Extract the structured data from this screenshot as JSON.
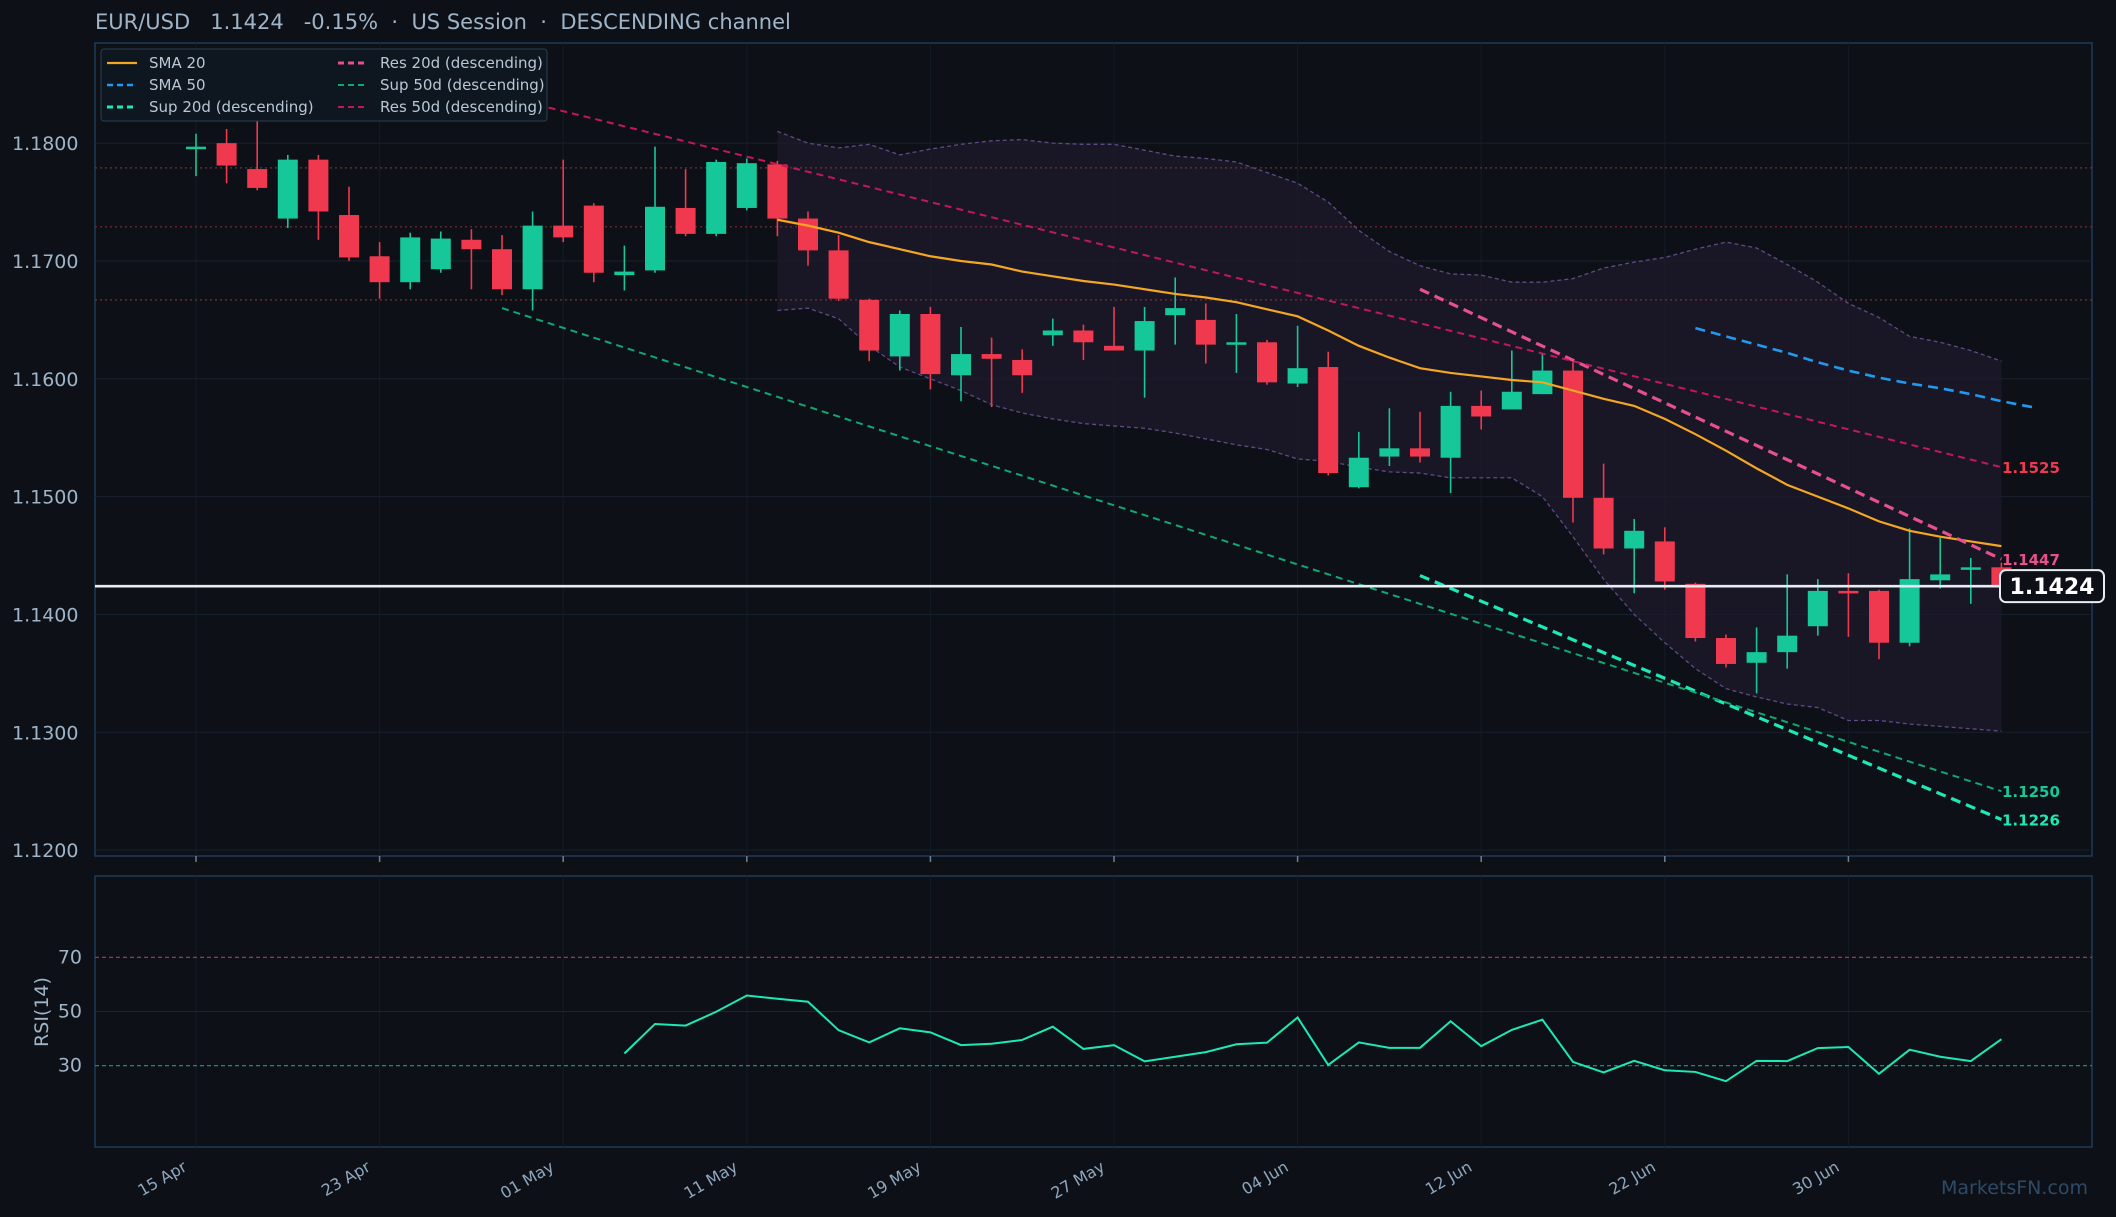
{
  "header": {
    "symbol": "EUR/USD",
    "price": "1.1424",
    "change": "-0.15%",
    "sep1": "·",
    "session": "US Session",
    "sep2": "·",
    "channel": "DESCENDING channel"
  },
  "watermark": "MarketsFN.com",
  "colors": {
    "background": "#0d1117",
    "up": "#16c79a",
    "down": "#f0384e",
    "sma20": "#f5a623",
    "sma50": "#1e9bf0",
    "res20": "#e6508c",
    "sup20": "#1de9b6",
    "res50": "#c2185b",
    "sup50": "#0fa870",
    "rsi": "#1de9b6"
  },
  "chart_data": [
    {
      "type": "candlestick",
      "title": "EUR/USD",
      "ylim": [
        1.1195,
        1.1885
      ],
      "yticks": [
        "1.1800",
        "1.1700",
        "1.1600",
        "1.1500",
        "1.1400",
        "1.1300",
        "1.1200"
      ],
      "ytick_values": [
        1.18,
        1.17,
        1.16,
        1.15,
        1.14,
        1.13,
        1.12
      ],
      "xticks": [
        "15 Apr",
        "23 Apr",
        "01 May",
        "11 May",
        "19 May",
        "27 May",
        "04 Jun",
        "12 Jun",
        "22 Jun",
        "30 Jun"
      ],
      "xtick_index": [
        0,
        6,
        12,
        18,
        24,
        30,
        36,
        42,
        48,
        54
      ],
      "current_price": 1.1424,
      "current_price_label": "1.1424",
      "candles": [
        {
          "o": 1.1795,
          "h": 1.1808,
          "l": 1.1772,
          "c": 1.1797
        },
        {
          "o": 1.18,
          "h": 1.1812,
          "l": 1.1766,
          "c": 1.1781
        },
        {
          "o": 1.1778,
          "h": 1.185,
          "l": 1.176,
          "c": 1.1762
        },
        {
          "o": 1.1736,
          "h": 1.179,
          "l": 1.1728,
          "c": 1.1786
        },
        {
          "o": 1.1786,
          "h": 1.179,
          "l": 1.1718,
          "c": 1.1742
        },
        {
          "o": 1.1739,
          "h": 1.1763,
          "l": 1.17,
          "c": 1.1703
        },
        {
          "o": 1.1704,
          "h": 1.1716,
          "l": 1.1668,
          "c": 1.1682
        },
        {
          "o": 1.1682,
          "h": 1.1724,
          "l": 1.1676,
          "c": 1.172
        },
        {
          "o": 1.1693,
          "h": 1.1725,
          "l": 1.169,
          "c": 1.1719
        },
        {
          "o": 1.1718,
          "h": 1.1727,
          "l": 1.1676,
          "c": 1.171
        },
        {
          "o": 1.171,
          "h": 1.1722,
          "l": 1.1671,
          "c": 1.1676
        },
        {
          "o": 1.1676,
          "h": 1.1742,
          "l": 1.1658,
          "c": 1.173
        },
        {
          "o": 1.173,
          "h": 1.1786,
          "l": 1.1716,
          "c": 1.172
        },
        {
          "o": 1.1747,
          "h": 1.1749,
          "l": 1.1682,
          "c": 1.169
        },
        {
          "o": 1.1688,
          "h": 1.1713,
          "l": 1.1675,
          "c": 1.1691
        },
        {
          "o": 1.1692,
          "h": 1.1797,
          "l": 1.169,
          "c": 1.1746
        },
        {
          "o": 1.1745,
          "h": 1.1778,
          "l": 1.1721,
          "c": 1.1723
        },
        {
          "o": 1.1723,
          "h": 1.1786,
          "l": 1.1721,
          "c": 1.1784
        },
        {
          "o": 1.1745,
          "h": 1.1787,
          "l": 1.1743,
          "c": 1.1783
        },
        {
          "o": 1.1782,
          "h": 1.1785,
          "l": 1.1721,
          "c": 1.1736
        },
        {
          "o": 1.1736,
          "h": 1.1742,
          "l": 1.1696,
          "c": 1.1709
        },
        {
          "o": 1.1709,
          "h": 1.1722,
          "l": 1.1666,
          "c": 1.1668
        },
        {
          "o": 1.1667,
          "h": 1.1668,
          "l": 1.1615,
          "c": 1.1624
        },
        {
          "o": 1.1619,
          "h": 1.1658,
          "l": 1.1607,
          "c": 1.1655
        },
        {
          "o": 1.1655,
          "h": 1.1661,
          "l": 1.1591,
          "c": 1.1604
        },
        {
          "o": 1.1603,
          "h": 1.1644,
          "l": 1.1581,
          "c": 1.1621
        },
        {
          "o": 1.1621,
          "h": 1.1635,
          "l": 1.1576,
          "c": 1.1617
        },
        {
          "o": 1.1616,
          "h": 1.1625,
          "l": 1.1588,
          "c": 1.1603
        },
        {
          "o": 1.1637,
          "h": 1.1651,
          "l": 1.1628,
          "c": 1.1641
        },
        {
          "o": 1.1641,
          "h": 1.1646,
          "l": 1.1616,
          "c": 1.1631
        },
        {
          "o": 1.1628,
          "h": 1.1661,
          "l": 1.1624,
          "c": 1.1624
        },
        {
          "o": 1.1624,
          "h": 1.1661,
          "l": 1.1584,
          "c": 1.1649
        },
        {
          "o": 1.1654,
          "h": 1.1686,
          "l": 1.1629,
          "c": 1.166
        },
        {
          "o": 1.165,
          "h": 1.1664,
          "l": 1.1613,
          "c": 1.1629
        },
        {
          "o": 1.163,
          "h": 1.1655,
          "l": 1.1605,
          "c": 1.1631
        },
        {
          "o": 1.1631,
          "h": 1.1633,
          "l": 1.1595,
          "c": 1.1597
        },
        {
          "o": 1.1596,
          "h": 1.1645,
          "l": 1.1593,
          "c": 1.1609
        },
        {
          "o": 1.161,
          "h": 1.1623,
          "l": 1.1518,
          "c": 1.152
        },
        {
          "o": 1.1508,
          "h": 1.1555,
          "l": 1.1507,
          "c": 1.1533
        },
        {
          "o": 1.1534,
          "h": 1.1575,
          "l": 1.1526,
          "c": 1.1541
        },
        {
          "o": 1.1541,
          "h": 1.1572,
          "l": 1.1529,
          "c": 1.1534
        },
        {
          "o": 1.1533,
          "h": 1.1589,
          "l": 1.1503,
          "c": 1.1577
        },
        {
          "o": 1.1577,
          "h": 1.159,
          "l": 1.1557,
          "c": 1.1568
        },
        {
          "o": 1.1574,
          "h": 1.1624,
          "l": 1.1574,
          "c": 1.1589
        },
        {
          "o": 1.1587,
          "h": 1.1621,
          "l": 1.1587,
          "c": 1.1607
        },
        {
          "o": 1.1607,
          "h": 1.1614,
          "l": 1.1478,
          "c": 1.1499
        },
        {
          "o": 1.1499,
          "h": 1.1528,
          "l": 1.1451,
          "c": 1.1456
        },
        {
          "o": 1.1456,
          "h": 1.1481,
          "l": 1.1418,
          "c": 1.1471
        },
        {
          "o": 1.1462,
          "h": 1.1474,
          "l": 1.1421,
          "c": 1.1428
        },
        {
          "o": 1.1426,
          "h": 1.1427,
          "l": 1.1377,
          "c": 1.138
        },
        {
          "o": 1.138,
          "h": 1.1383,
          "l": 1.1355,
          "c": 1.1358
        },
        {
          "o": 1.1359,
          "h": 1.1389,
          "l": 1.1333,
          "c": 1.1368
        },
        {
          "o": 1.1368,
          "h": 1.1434,
          "l": 1.1354,
          "c": 1.1382
        },
        {
          "o": 1.139,
          "h": 1.143,
          "l": 1.1382,
          "c": 1.142
        },
        {
          "o": 1.142,
          "h": 1.1435,
          "l": 1.1381,
          "c": 1.1419
        },
        {
          "o": 1.142,
          "h": 1.1421,
          "l": 1.1362,
          "c": 1.1376
        },
        {
          "o": 1.1376,
          "h": 1.1473,
          "l": 1.1373,
          "c": 1.143
        },
        {
          "o": 1.1429,
          "h": 1.1465,
          "l": 1.1422,
          "c": 1.1434
        },
        {
          "o": 1.1438,
          "h": 1.1448,
          "l": 1.1409,
          "c": 1.144
        },
        {
          "o": 1.144,
          "h": 1.1444,
          "l": 1.1422,
          "c": 1.1424
        }
      ],
      "bollinger": {
        "start_index": 19,
        "upper": [
          1.181,
          1.18,
          1.1796,
          1.1799,
          1.179,
          1.1795,
          1.1799,
          1.1802,
          1.1803,
          1.18,
          1.1799,
          1.1799,
          1.1794,
          1.1789,
          1.1787,
          1.1784,
          1.1775,
          1.1766,
          1.175,
          1.1726,
          1.1708,
          1.1696,
          1.1689,
          1.1688,
          1.1682,
          1.1682,
          1.1685,
          1.1694,
          1.1699,
          1.1703,
          1.171,
          1.1716,
          1.1711,
          1.1697,
          1.1682,
          1.1664,
          1.1652,
          1.1636,
          1.1631,
          1.1624,
          1.1615
        ],
        "lower": [
          1.1658,
          1.166,
          1.1651,
          1.1628,
          1.161,
          1.16,
          1.159,
          1.1578,
          1.1571,
          1.1566,
          1.1562,
          1.156,
          1.1558,
          1.1554,
          1.1549,
          1.1544,
          1.154,
          1.1532,
          1.153,
          1.1525,
          1.1521,
          1.152,
          1.1516,
          1.1516,
          1.1516,
          1.15,
          1.1466,
          1.143,
          1.14,
          1.1376,
          1.1354,
          1.1337,
          1.133,
          1.1324,
          1.1321,
          1.131,
          1.131,
          1.1307,
          1.1305,
          1.1303,
          1.1301
        ]
      },
      "series": [
        {
          "name": "SMA 20",
          "start_index": 19,
          "values": [
            1.1735,
            1.173,
            1.1724,
            1.1716,
            1.171,
            1.1704,
            1.17,
            1.1697,
            1.1691,
            1.1687,
            1.1683,
            1.168,
            1.1676,
            1.1672,
            1.1669,
            1.1665,
            1.1659,
            1.1653,
            1.1641,
            1.1628,
            1.1618,
            1.1609,
            1.1605,
            1.1602,
            1.1599,
            1.1597,
            1.159,
            1.1583,
            1.1577,
            1.1566,
            1.1553,
            1.1539,
            1.1524,
            1.151,
            1.15,
            1.149,
            1.1479,
            1.1471,
            1.1466,
            1.1462,
            1.1458
          ]
        },
        {
          "name": "SMA 50",
          "start_index": 49,
          "values": [
            1.1643,
            1.1636,
            1.1629,
            1.1622,
            1.1614,
            1.1607,
            1.1601,
            1.1596,
            1.1592,
            1.1587,
            1.1581,
            1.1576
          ]
        },
        {
          "name": "Sup 20d (descending)",
          "x0": 40,
          "y0": 1.1433,
          "x1": 59,
          "y1": 1.1226
        },
        {
          "name": "Res 20d (descending)",
          "x0": 40,
          "y0": 1.1676,
          "x1": 59,
          "y1": 1.1447
        },
        {
          "name": "Sup 50d (descending)",
          "x0": 10,
          "y0": 1.166,
          "x1": 59,
          "y1": 1.125
        },
        {
          "name": "Res 50d (descending)",
          "x0": 10,
          "y0": 1.184,
          "x1": 59,
          "y1": 1.1525
        }
      ],
      "level_labels": [
        {
          "text": "1.1525",
          "value": 1.1525,
          "color": "#f0384e"
        },
        {
          "text": "1.1447",
          "value": 1.1447,
          "color": "#e6508c"
        },
        {
          "text": "1.1250",
          "value": 1.125,
          "color": "#16c79a"
        },
        {
          "text": "1.1226",
          "value": 1.1226,
          "color": "#1de9b6"
        }
      ],
      "horizontal_levels": [
        1.1779,
        1.1729,
        1.1667
      ],
      "legend": {
        "placement": "top-left",
        "entries": [
          "SMA 20",
          "SMA 50",
          "Sup 20d (descending)",
          "Res 20d (descending)",
          "Sup 50d (descending)",
          "Res 50d (descending)"
        ]
      }
    },
    {
      "type": "line",
      "ylabel": "RSI(14)",
      "ylim": [
        0,
        100
      ],
      "yticks": [
        "70",
        "50",
        "30"
      ],
      "ytick_values": [
        70,
        50,
        30
      ],
      "overbought": 70,
      "oversold": 30,
      "series": [
        {
          "name": "",
          "start_index": 14,
          "values": [
            34.5,
            45.4,
            44.8,
            49.9,
            55.9,
            54.7,
            53.6,
            43.1,
            38.6,
            43.8,
            42.3,
            37.6,
            38.1,
            39.5,
            44.4,
            36.2,
            37.6,
            31.6,
            33.3,
            35,
            37.9,
            38.5,
            47.8,
            30.3,
            38.6,
            36.6,
            36.6,
            46.4,
            37.2,
            43.2,
            47,
            31.4,
            27.5,
            31.8,
            28.3,
            27.7,
            24.3,
            31.8,
            31.7,
            36.5,
            36.9,
            27,
            35.9,
            33.3,
            31.7,
            39.8
          ]
        }
      ]
    }
  ]
}
